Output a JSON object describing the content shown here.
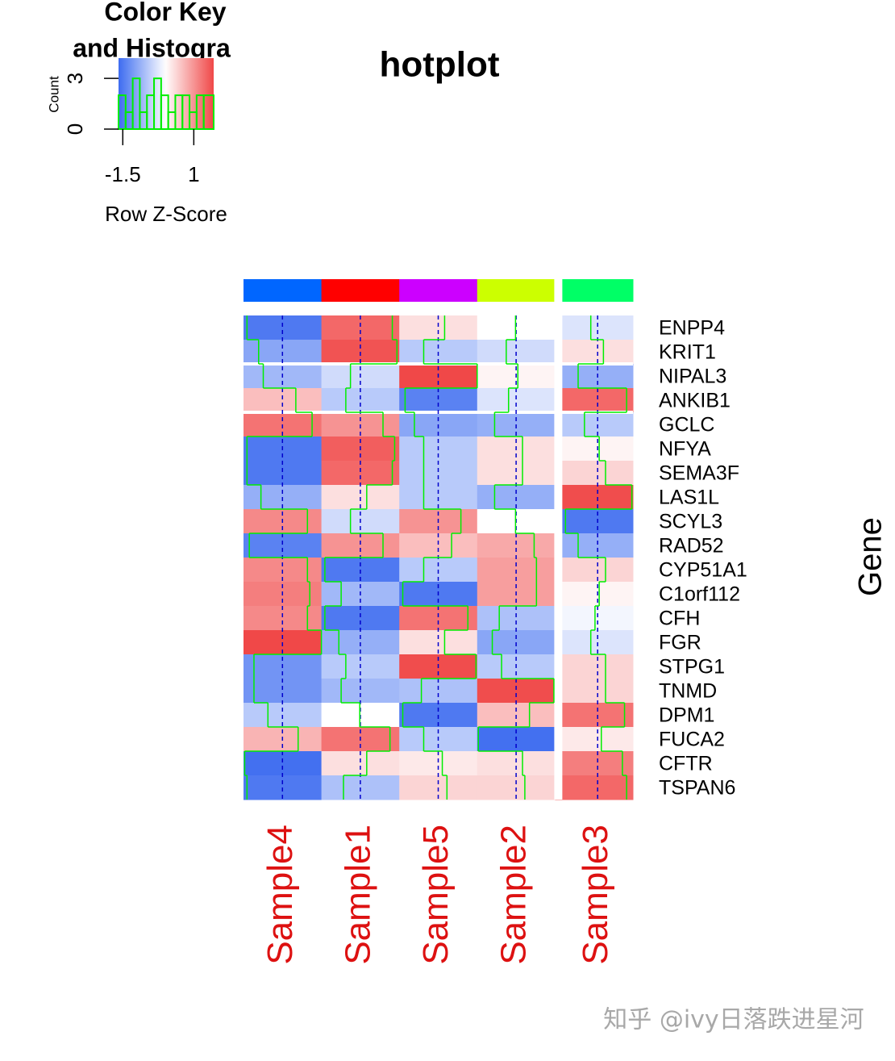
{
  "chart_data": {
    "type": "heatmap",
    "title": "hotplot",
    "categories": [
      "Sample4",
      "Sample1",
      "Sample5",
      "Sample2",
      "Sample3"
    ],
    "col_colors": [
      "#0066ff",
      "#ff0000",
      "#cc00ff",
      "#ccff00",
      "#00ff66"
    ],
    "rows": [
      "ENPP4",
      "KRIT1",
      "NIPAL3",
      "ANKIB1",
      "GCLC",
      "NFYA",
      "SEMA3F",
      "LAS1L",
      "SCYL3",
      "RAD52",
      "CYP51A1",
      "C1orf112",
      "CFH",
      "FGR",
      "STPG1",
      "TNMD",
      "DPM1",
      "FUCA2",
      "CFTR",
      "TSPAN6"
    ],
    "values": [
      [
        -1.5,
        1.4,
        0.3,
        0.0,
        -0.3
      ],
      [
        -1.0,
        1.6,
        -0.6,
        -0.4,
        0.3
      ],
      [
        -0.8,
        -0.4,
        1.7,
        0.1,
        -0.9
      ],
      [
        0.6,
        -0.6,
        -1.4,
        -0.3,
        1.4
      ],
      [
        1.3,
        1.0,
        -1.0,
        -0.9,
        -0.6
      ],
      [
        -1.5,
        1.5,
        -0.6,
        0.3,
        0.1
      ],
      [
        -1.5,
        1.4,
        -0.6,
        0.3,
        0.4
      ],
      [
        -0.9,
        0.3,
        -0.6,
        -0.9,
        1.65
      ],
      [
        1.1,
        -0.4,
        1.0,
        0.0,
        -1.5
      ],
      [
        -1.4,
        1.0,
        0.6,
        0.8,
        -0.9
      ],
      [
        1.1,
        -1.5,
        -0.6,
        0.9,
        0.4
      ],
      [
        1.2,
        -0.8,
        -1.5,
        0.9,
        0.1
      ],
      [
        1.1,
        -1.5,
        1.3,
        -0.7,
        -0.1
      ],
      [
        1.7,
        -0.9,
        0.3,
        -1.0,
        -0.3
      ],
      [
        -1.2,
        -0.6,
        1.65,
        -0.6,
        0.4
      ],
      [
        -1.2,
        -0.8,
        -0.7,
        1.65,
        0.4
      ],
      [
        -0.6,
        0.0,
        -1.5,
        0.6,
        1.3
      ],
      [
        0.7,
        1.3,
        -0.6,
        -1.6,
        0.2
      ],
      [
        -1.6,
        0.3,
        0.2,
        0.3,
        1.2
      ],
      [
        -1.5,
        -0.7,
        0.4,
        0.4,
        1.4
      ]
    ],
    "colors": [
      "#3d6cf0",
      "#ffffff",
      "#f04848"
    ],
    "trace_color": "#00ee00",
    "ylabel": "Gene",
    "key": {
      "title": [
        "Color Key",
        "and Histogra"
      ],
      "xlabel": "Row Z-Score",
      "ylabel": "Count",
      "xlim": [
        -1.65,
        1.7
      ],
      "xticks": [
        -1.5,
        1
      ],
      "bins": [
        -1.65,
        -1.4,
        -1.15,
        -0.9,
        -0.65,
        -0.4,
        -0.15,
        0.1,
        0.35,
        0.6,
        0.85,
        1.1,
        1.35,
        1.7
      ],
      "counts": [
        2,
        1,
        3,
        1,
        2,
        3,
        2,
        1,
        2,
        2,
        1,
        2,
        2
      ],
      "ylim": [
        0,
        4.2
      ],
      "yticks": [
        0,
        3
      ]
    }
  },
  "watermark": "知乎 @ivy日落跌进星河"
}
